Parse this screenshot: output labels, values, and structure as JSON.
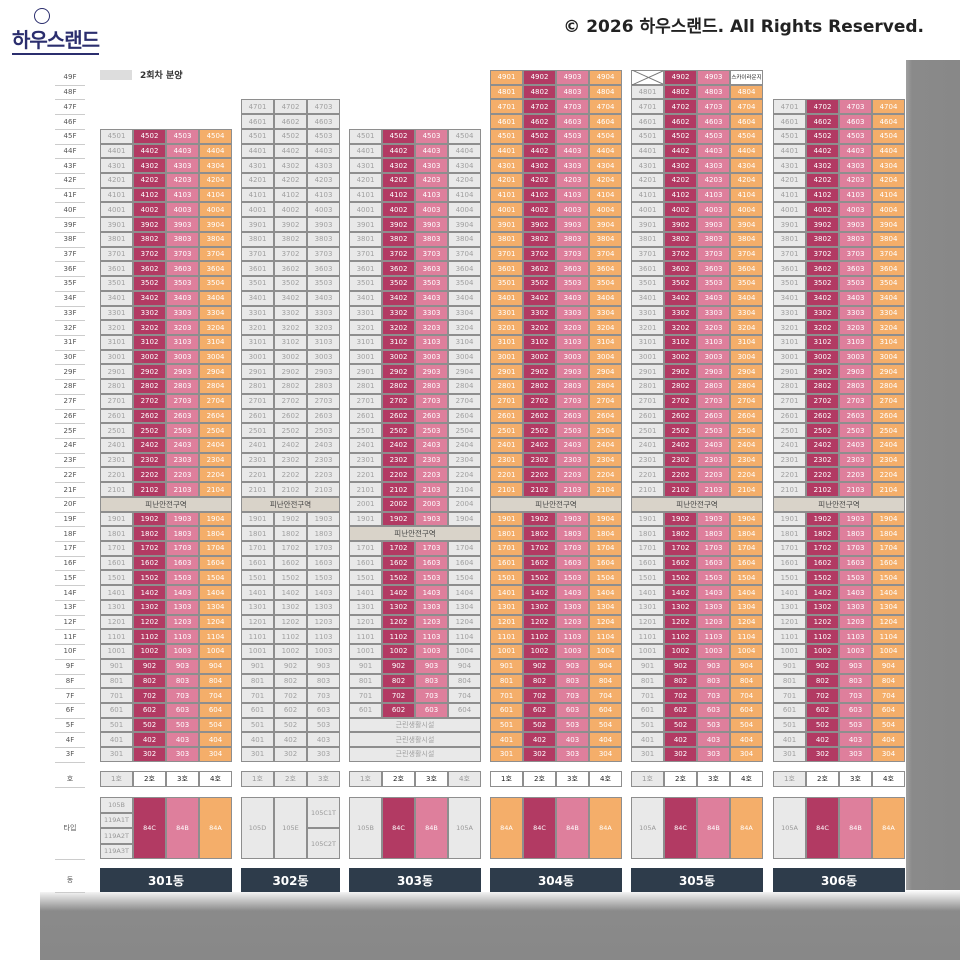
{
  "header": {
    "logo": "하우스랜드",
    "copyright": "© 2026 하우스랜드. All Rights Reserved."
  },
  "legend": {
    "label": "2회차 분양"
  },
  "row_labels": {
    "ho": "호",
    "type": "타입",
    "dong": "동"
  },
  "refuge_label": "피난안전구역",
  "facility_label": "근린생활시설",
  "sky_lounge_label": "스카이라운지",
  "colors": {
    "crimson": "#b23a63",
    "pink": "#de7f9c",
    "orange": "#f4ae6a",
    "gray": "#e9e9e9",
    "refuge": "#d9d3c9",
    "dong": "#2e3c4b"
  },
  "floors": {
    "min": 3,
    "max": 49
  },
  "buildings": [
    {
      "name": "301동",
      "top": 45,
      "cols": [
        "g",
        "c",
        "p",
        "o"
      ],
      "ho": [
        "1호",
        "2호",
        "3호",
        "4호"
      ],
      "types": [
        [
          "105B",
          "119A1T",
          "119A2T",
          "119A3T"
        ],
        [
          "84C"
        ],
        [
          "84B"
        ],
        [
          "84A"
        ]
      ],
      "refuge": [
        20
      ],
      "facility": []
    },
    {
      "name": "302동",
      "top": 47,
      "cols": [
        "g",
        "g",
        "g"
      ],
      "ho": [
        "1호",
        "2호",
        "3호"
      ],
      "types": [
        [
          "105D"
        ],
        [
          "105E"
        ],
        [
          "105C1T",
          "105C2T"
        ]
      ],
      "refuge": [
        20
      ],
      "facility": []
    },
    {
      "name": "303동",
      "top": 45,
      "cols": [
        "g",
        "c",
        "p",
        "g"
      ],
      "ho": [
        "1호",
        "2호",
        "3호",
        "4호"
      ],
      "types": [
        [
          "105B"
        ],
        [
          "84C"
        ],
        [
          "84B"
        ],
        [
          "105A"
        ]
      ],
      "refuge": [
        18
      ],
      "facility": [
        5,
        4,
        3
      ]
    },
    {
      "name": "304동",
      "top": 49,
      "cols": [
        "o",
        "c",
        "p",
        "o"
      ],
      "ho": [
        "1호",
        "2호",
        "3호",
        "4호"
      ],
      "types": [
        [
          "84A"
        ],
        [
          "84C"
        ],
        [
          "84B"
        ],
        [
          "84A"
        ]
      ],
      "refuge": [
        20
      ],
      "facility": []
    },
    {
      "name": "305동",
      "top": 49,
      "cols": [
        "g",
        "c",
        "p",
        "o"
      ],
      "ho": [
        "1호",
        "2호",
        "3호",
        "4호"
      ],
      "types": [
        [
          "105A"
        ],
        [
          "84C"
        ],
        [
          "84B"
        ],
        [
          "84A"
        ]
      ],
      "refuge": [
        20
      ],
      "facility": [],
      "crossed": [
        "4901"
      ],
      "sky_lounge": [
        "4904"
      ]
    },
    {
      "name": "306동",
      "top": 47,
      "cols": [
        "g",
        "c",
        "p",
        "o"
      ],
      "ho": [
        "1호",
        "2호",
        "3호",
        "4호"
      ],
      "types": [
        [
          "105A"
        ],
        [
          "84C"
        ],
        [
          "84B"
        ],
        [
          "84A"
        ]
      ],
      "refuge": [
        20
      ],
      "facility": []
    }
  ]
}
